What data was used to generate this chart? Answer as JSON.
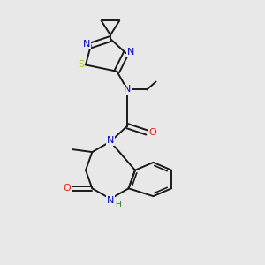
{
  "background_color": "#e8e8e8",
  "bond_color": "#1a1a1a",
  "bond_width": 1.4,
  "atom_colors": {
    "N": "#0000cc",
    "O": "#dd2200",
    "S": "#bbbb00",
    "C": "#1a1a1a",
    "H": "#207820"
  },
  "font_size_atom": 8,
  "font_size_small": 6.5,
  "figsize": [
    3.0,
    3.0
  ],
  "dpi": 100,
  "xlim": [
    0,
    10
  ],
  "ylim": [
    0,
    10
  ]
}
